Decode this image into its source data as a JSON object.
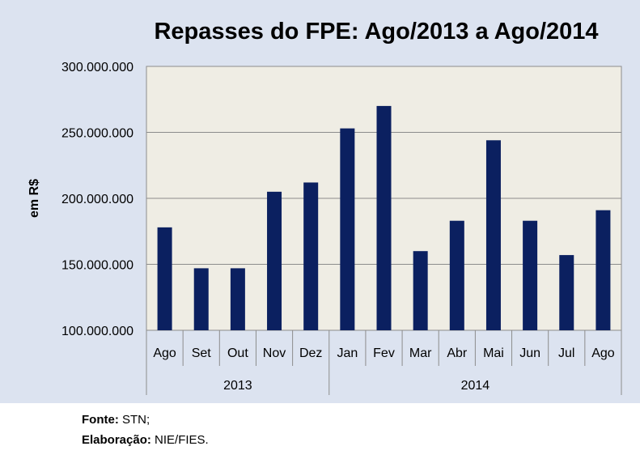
{
  "chart_data": {
    "type": "bar",
    "title": "Repasses do FPE: Ago/2013 a Ago/2014",
    "ylabel": "em R$",
    "xlabel": "",
    "ylim": [
      100000000,
      300000000
    ],
    "yticks": [
      100000000,
      150000000,
      200000000,
      250000000,
      300000000
    ],
    "ytick_labels": [
      "100.000.000",
      "150.000.000",
      "200.000.000",
      "250.000.000",
      "300.000.000"
    ],
    "grid": true,
    "legend": "none",
    "categories": [
      "Ago",
      "Set",
      "Out",
      "Nov",
      "Dez",
      "Jan",
      "Fev",
      "Mar",
      "Abr",
      "Mai",
      "Jun",
      "Jul",
      "Ago"
    ],
    "groups": [
      {
        "label": "2013",
        "count": 5
      },
      {
        "label": "2014",
        "count": 8
      }
    ],
    "values": [
      178000000,
      147000000,
      147000000,
      205000000,
      212000000,
      253000000,
      270000000,
      160000000,
      183000000,
      244000000,
      183000000,
      157000000,
      191000000
    ],
    "bar_color": "#0b2060",
    "plot_background": "#efede4",
    "panel_background": "#dce3f0"
  },
  "source": {
    "fonte_label": "Fonte:",
    "fonte_value": " STN;",
    "elab_label": "Elaboração:",
    "elab_value": "  NIE/FIES."
  }
}
